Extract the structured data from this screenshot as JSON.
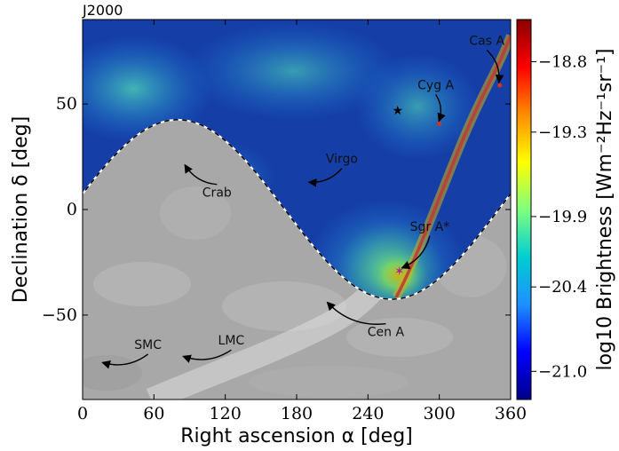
{
  "chart_data": {
    "type": "heatmap",
    "title": "J2000",
    "xlabel": "Right ascension α [deg]",
    "ylabel": "Declination δ [deg]",
    "colorbar_label": "log10 Brightness [Wm⁻²Hz⁻¹sr⁻¹]",
    "xlim": [
      0,
      360
    ],
    "ylim": [
      -90,
      90
    ],
    "xticks": [
      0,
      60,
      120,
      180,
      240,
      300,
      360
    ],
    "yticks": [
      -50,
      0,
      50
    ],
    "ytick_labels": [
      "−50",
      "0",
      "50"
    ],
    "colorbar_range": [
      -21.2,
      -18.5
    ],
    "colorbar_ticks": [
      -18.8,
      -19.3,
      -19.9,
      -20.4,
      -21.0
    ],
    "colorbar_tick_labels": [
      "−18.8",
      "−19.3",
      "−19.9",
      "−20.4",
      "−21.0"
    ],
    "colorbar_colors": [
      "#00008b",
      "#0000ff",
      "#1e90ff",
      "#00ced1",
      "#7fff7f",
      "#ffff00",
      "#ff8c00",
      "#ff0000",
      "#8b0000"
    ],
    "horizon_curve": {
      "amplitude_deg": 42.5,
      "center_ra": 80,
      "ra_of_min": 260
    },
    "galactic_plane_color": "#e8402a",
    "sources": [
      {
        "name": "Cas A",
        "ra": 350.9,
        "dec": 58.8,
        "label_ra": 340,
        "label_dec": 78,
        "marker": "dot"
      },
      {
        "name": "Cyg A",
        "ra": 299.9,
        "dec": 40.7,
        "label_ra": 297,
        "label_dec": 57,
        "marker": "dot"
      },
      {
        "name": "Virgo",
        "ra": 187.7,
        "dec": 12.4,
        "label_ra": 218,
        "label_dec": 22,
        "marker": "none"
      },
      {
        "name": "Crab",
        "ra": 83.6,
        "dec": 22.0,
        "label_ra": 113,
        "label_dec": 6,
        "marker": "none"
      },
      {
        "name": "Sgr A*",
        "ra": 266.4,
        "dec": -29.0,
        "label_ra": 292,
        "label_dec": -10,
        "marker": "star"
      },
      {
        "name": "Cen A",
        "ra": 201.4,
        "dec": -43.0,
        "label_ra": 255,
        "label_dec": -60,
        "marker": "none"
      },
      {
        "name": "LMC",
        "ra": 80.9,
        "dec": -69.8,
        "label_ra": 125,
        "label_dec": -64,
        "marker": "none"
      },
      {
        "name": "SMC",
        "ra": 13.2,
        "dec": -72.8,
        "label_ra": 55,
        "label_dec": -66,
        "marker": "none"
      }
    ],
    "extra_marker": {
      "name": "black-star",
      "ra": 265,
      "dec": 47
    },
    "grid": false
  }
}
